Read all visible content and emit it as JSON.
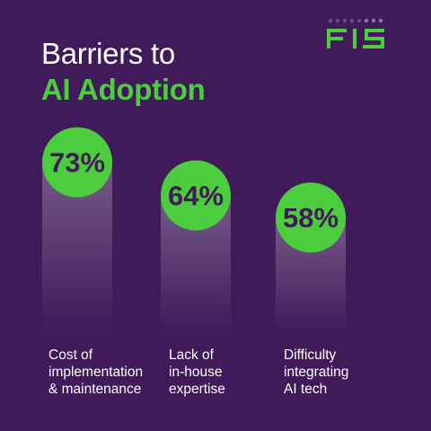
{
  "title": {
    "line1": "Barriers to",
    "line2": "AI Adoption"
  },
  "logo": {
    "text": "FIS",
    "icon": "fis-logo",
    "color": "#4bcd3e"
  },
  "colors": {
    "background": "#411a5a",
    "accent": "#4bcd3e",
    "text": "#ffffff"
  },
  "chart_data": {
    "type": "bar",
    "categories": [
      "Cost of\nimplementation\n& maintenance",
      "Lack of\nin-house\nexpertise",
      "Difficulty\nintegrating\nAI tech"
    ],
    "values": [
      73,
      64,
      58
    ],
    "value_labels": [
      "73%",
      "64%",
      "58%"
    ],
    "unit": "%"
  }
}
